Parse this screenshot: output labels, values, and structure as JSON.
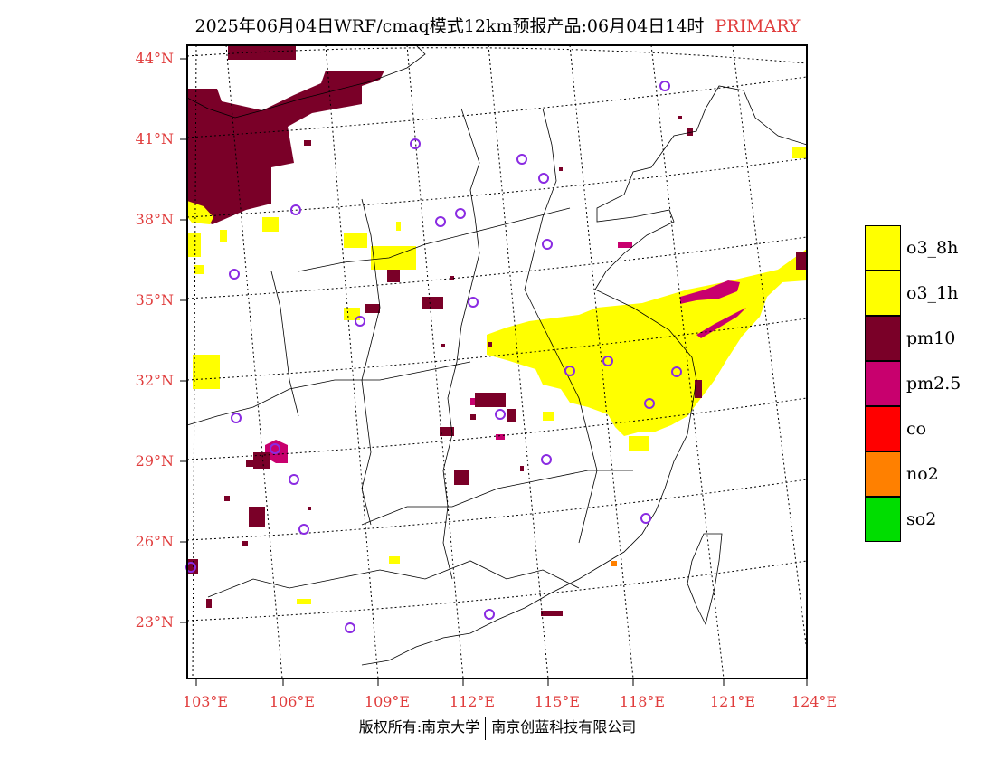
{
  "title": {
    "main": "2025年06月04日WRF/cmaq模式12km预报产品:06月04日14时",
    "tag": "PRIMARY"
  },
  "lat_ticks": [
    "44°N",
    "41°N",
    "38°N",
    "35°N",
    "32°N",
    "29°N",
    "26°N",
    "23°N"
  ],
  "lon_ticks": [
    "103°E",
    "106°E",
    "109°E",
    "112°E",
    "115°E",
    "118°E",
    "121°E",
    "124°E"
  ],
  "legend": [
    {
      "label": "o3_8h",
      "color": "#ffff00"
    },
    {
      "label": "o3_1h",
      "color": "#ffff00"
    },
    {
      "label": "pm10",
      "color": "#7a0028"
    },
    {
      "label": "pm2.5",
      "color": "#c8006e"
    },
    {
      "label": "co",
      "color": "#ff0000"
    },
    {
      "label": "no2",
      "color": "#ff8000"
    },
    {
      "label": "so2",
      "color": "#00dd00"
    }
  ],
  "colors": {
    "tick_label": "#e03c3c",
    "station_circle": "#8a2be2",
    "o3": "#ffff00",
    "pm10": "#7a0028",
    "pm25": "#c8006e"
  },
  "footer": {
    "left": "版权所有:南京大学",
    "right": "南京创蓝科技有限公司"
  }
}
